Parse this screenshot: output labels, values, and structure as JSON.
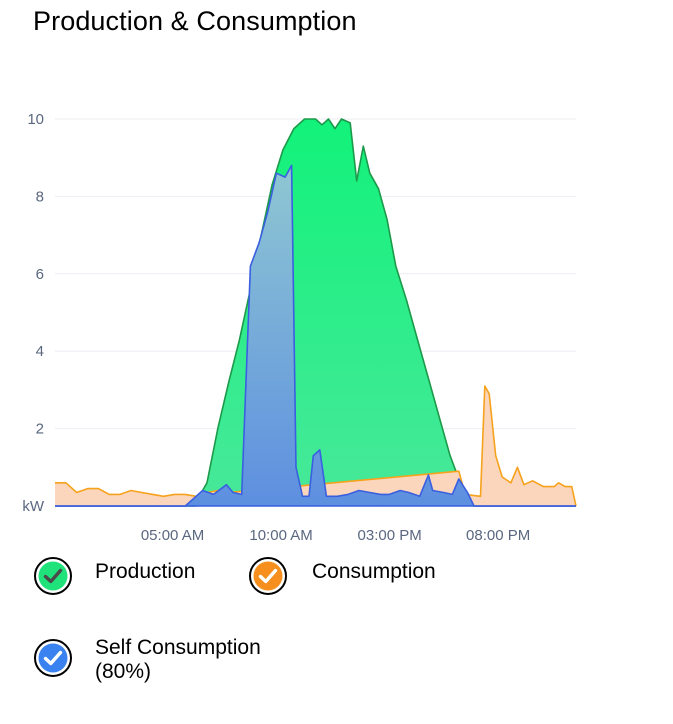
{
  "title": "Production & Consumption",
  "chart_data": {
    "type": "area",
    "x_unit": "hour of day",
    "xlim": [
      0,
      24
    ],
    "ylim": [
      0,
      10
    ],
    "yticks": [
      2,
      4,
      6,
      8,
      10
    ],
    "ylabel": "kW",
    "grid": true,
    "xtick_labels": [
      {
        "x": 5,
        "label": "05:00 AM"
      },
      {
        "x": 10,
        "label": "10:00 AM"
      },
      {
        "x": 15,
        "label": "03:00 PM"
      },
      {
        "x": 20,
        "label": "08:00 PM"
      }
    ],
    "series": [
      {
        "name": "Production",
        "color": "#1fe27a",
        "stroke": "#1c9a4a",
        "points": [
          [
            0,
            0
          ],
          [
            6.5,
            0
          ],
          [
            6.7,
            0.3
          ],
          [
            7.0,
            0.6
          ],
          [
            7.5,
            2.0
          ],
          [
            8.0,
            3.2
          ],
          [
            8.5,
            4.3
          ],
          [
            9.0,
            5.6
          ],
          [
            9.5,
            7.0
          ],
          [
            10.0,
            8.3
          ],
          [
            10.5,
            9.2
          ],
          [
            11.0,
            9.75
          ],
          [
            11.5,
            10.0
          ],
          [
            12.0,
            10.0
          ],
          [
            12.3,
            9.85
          ],
          [
            12.6,
            10.0
          ],
          [
            12.9,
            9.75
          ],
          [
            13.2,
            10.0
          ],
          [
            13.6,
            9.9
          ],
          [
            13.9,
            8.4
          ],
          [
            14.2,
            9.3
          ],
          [
            14.5,
            8.6
          ],
          [
            14.9,
            8.2
          ],
          [
            15.3,
            7.4
          ],
          [
            15.7,
            6.2
          ],
          [
            16.2,
            5.3
          ],
          [
            16.7,
            4.3
          ],
          [
            17.2,
            3.3
          ],
          [
            17.7,
            2.3
          ],
          [
            18.2,
            1.3
          ],
          [
            18.6,
            0.7
          ],
          [
            19.0,
            0.3
          ],
          [
            19.3,
            0
          ],
          [
            24,
            0
          ]
        ]
      },
      {
        "name": "Consumption",
        "color": "#fbd6bc",
        "stroke": "#f6a21c",
        "points": [
          [
            0,
            0.6
          ],
          [
            0.5,
            0.6
          ],
          [
            1.0,
            0.35
          ],
          [
            1.5,
            0.45
          ],
          [
            2.0,
            0.45
          ],
          [
            2.5,
            0.3
          ],
          [
            3.0,
            0.3
          ],
          [
            3.5,
            0.4
          ],
          [
            4.0,
            0.35
          ],
          [
            4.5,
            0.3
          ],
          [
            5.0,
            0.25
          ],
          [
            5.5,
            0.3
          ],
          [
            6.0,
            0.3
          ],
          [
            6.5,
            0.25
          ],
          [
            7.0,
            0.35
          ],
          [
            7.5,
            0.4
          ],
          [
            8.0,
            0.35
          ],
          [
            18.6,
            0.9
          ],
          [
            18.9,
            0.3
          ],
          [
            19.6,
            0.25
          ],
          [
            19.8,
            3.1
          ],
          [
            20.0,
            2.9
          ],
          [
            20.3,
            1.3
          ],
          [
            20.6,
            0.75
          ],
          [
            21.0,
            0.6
          ],
          [
            21.3,
            1.0
          ],
          [
            21.6,
            0.55
          ],
          [
            22.0,
            0.65
          ],
          [
            22.5,
            0.5
          ],
          [
            23.0,
            0.5
          ],
          [
            23.2,
            0.6
          ],
          [
            23.5,
            0.5
          ],
          [
            23.8,
            0.5
          ],
          [
            24,
            0
          ]
        ]
      },
      {
        "name": "Self Consumption (80%)",
        "color": "#6ea8d8",
        "stroke": "#3a5fe0",
        "points": [
          [
            0,
            0
          ],
          [
            6.0,
            0
          ],
          [
            6.5,
            0.25
          ],
          [
            6.8,
            0.4
          ],
          [
            7.3,
            0.3
          ],
          [
            7.9,
            0.55
          ],
          [
            8.2,
            0.35
          ],
          [
            8.6,
            0.3
          ],
          [
            9.0,
            6.2
          ],
          [
            9.4,
            6.8
          ],
          [
            9.8,
            7.6
          ],
          [
            10.2,
            8.6
          ],
          [
            10.6,
            8.5
          ],
          [
            10.9,
            8.8
          ],
          [
            11.1,
            1.0
          ],
          [
            11.4,
            0.25
          ],
          [
            11.7,
            0.25
          ],
          [
            11.9,
            1.3
          ],
          [
            12.2,
            1.45
          ],
          [
            12.5,
            0.25
          ],
          [
            13.0,
            0.25
          ],
          [
            13.5,
            0.3
          ],
          [
            14.0,
            0.4
          ],
          [
            14.5,
            0.35
          ],
          [
            15.0,
            0.3
          ],
          [
            15.4,
            0.3
          ],
          [
            15.9,
            0.4
          ],
          [
            16.3,
            0.35
          ],
          [
            16.8,
            0.25
          ],
          [
            17.2,
            0.8
          ],
          [
            17.4,
            0.4
          ],
          [
            17.9,
            0.35
          ],
          [
            18.3,
            0.3
          ],
          [
            18.6,
            0.7
          ],
          [
            19.0,
            0.35
          ],
          [
            19.3,
            0
          ],
          [
            24,
            0
          ]
        ]
      }
    ]
  },
  "legend": [
    {
      "label": "Production",
      "color": "#1fe27a"
    },
    {
      "label": "Consumption",
      "color": "#f68f1e"
    },
    {
      "label_line1": "Self Consumption",
      "label_line2": "(80%)",
      "color": "#3a82f0"
    }
  ]
}
